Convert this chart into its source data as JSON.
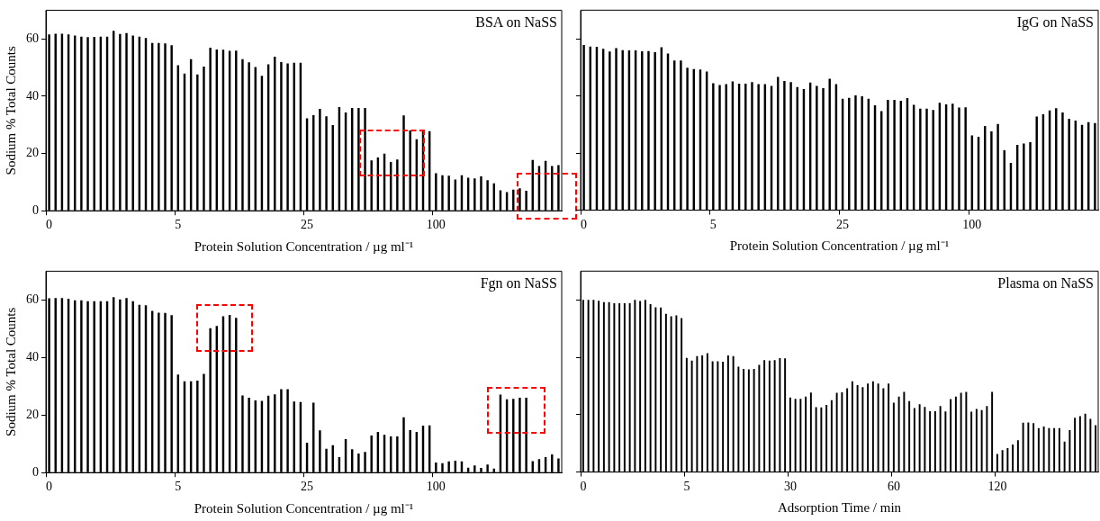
{
  "chart_data": [
    {
      "type": "bar",
      "title": "BSA on NaSS",
      "xlabel": "Protein Solution Concentration / µg ml⁻¹",
      "ylabel": "Sodium % Total Counts",
      "color": "#000000",
      "ylim": [
        0,
        70
      ],
      "yticks": [
        0,
        20,
        40,
        60
      ],
      "categories": [
        "0",
        null,
        null,
        null,
        null,
        null,
        null,
        null,
        null,
        null,
        null,
        null,
        null,
        null,
        null,
        null,
        null,
        null,
        null,
        null,
        "5",
        null,
        null,
        null,
        null,
        null,
        null,
        null,
        null,
        null,
        null,
        null,
        null,
        null,
        null,
        null,
        null,
        null,
        null,
        null,
        "25",
        null,
        null,
        null,
        null,
        null,
        null,
        null,
        null,
        null,
        null,
        null,
        null,
        null,
        null,
        null,
        null,
        null,
        null,
        null,
        "100",
        null,
        null,
        null,
        null,
        null,
        null,
        null,
        null,
        null,
        null,
        null,
        null,
        null,
        null,
        null,
        null,
        null,
        null,
        null
      ],
      "values": [
        61.6,
        61.8,
        61.8,
        61.6,
        61.2,
        60.8,
        60.6,
        60.7,
        60.8,
        60.8,
        62.8,
        61.7,
        62.0,
        61.2,
        60.8,
        60.3,
        58.6,
        58.6,
        58.4,
        57.8,
        50.8,
        47.9,
        52.9,
        47.6,
        50.3,
        56.9,
        56.3,
        56.2,
        55.8,
        55.9,
        52.9,
        51.8,
        50.2,
        47.1,
        51.1,
        53.8,
        51.9,
        51.4,
        51.7,
        51.7,
        32.3,
        33.4,
        35.6,
        33.0,
        29.9,
        36.2,
        34.3,
        35.9,
        35.9,
        35.9,
        17.6,
        18.6,
        19.9,
        17.0,
        17.9,
        33.3,
        28.0,
        25.0,
        27.8,
        27.8,
        13.1,
        12.4,
        12.2,
        10.9,
        12.4,
        11.5,
        11.3,
        12.0,
        10.7,
        9.6,
        7.1,
        6.5,
        7.4,
        7.8,
        7.0,
        17.7,
        15.6,
        17.4,
        15.6,
        15.9
      ]
    },
    {
      "type": "bar",
      "title": "IgG on NaSS",
      "xlabel": "Protein Solution Concentration / µg ml⁻¹",
      "color": "#000000",
      "ylim": [
        0,
        70
      ],
      "yticks": [
        0,
        20,
        40,
        60
      ],
      "tick_labels": "x",
      "categories": [
        "0",
        null,
        null,
        null,
        null,
        null,
        null,
        null,
        null,
        null,
        null,
        null,
        null,
        null,
        null,
        null,
        null,
        null,
        null,
        null,
        "5",
        null,
        null,
        null,
        null,
        null,
        null,
        null,
        null,
        null,
        null,
        null,
        null,
        null,
        null,
        null,
        null,
        null,
        null,
        null,
        "25",
        null,
        null,
        null,
        null,
        null,
        null,
        null,
        null,
        null,
        null,
        null,
        null,
        null,
        null,
        null,
        null,
        null,
        null,
        null,
        "100",
        null,
        null,
        null,
        null,
        null,
        null,
        null,
        null,
        null,
        null,
        null,
        null,
        null,
        null,
        null,
        null,
        null,
        null,
        null
      ],
      "values": [
        57.8,
        57.3,
        57.2,
        56.5,
        55.5,
        56.7,
        56.0,
        55.9,
        55.9,
        55.6,
        55.7,
        55.3,
        57.0,
        54.8,
        52.4,
        52.4,
        49.9,
        49.4,
        49.2,
        48.5,
        44.4,
        43.8,
        44.1,
        45.1,
        44.3,
        44.3,
        44.8,
        44.1,
        44.1,
        43.5,
        46.6,
        45.2,
        44.8,
        43.1,
        42.4,
        44.7,
        43.5,
        42.7,
        46.0,
        44.1,
        39.0,
        39.3,
        40.2,
        39.9,
        39.0,
        36.7,
        34.7,
        38.6,
        38.6,
        38.3,
        39.2,
        36.9,
        35.5,
        35.5,
        35.1,
        37.6,
        37.0,
        37.3,
        35.9,
        36.0,
        26.2,
        25.7,
        29.5,
        27.6,
        30.2,
        21.0,
        16.6,
        22.9,
        23.3,
        23.8,
        32.8,
        33.6,
        34.9,
        35.7,
        34.2,
        32.0,
        31.4,
        29.9,
        30.8,
        30.5
      ]
    },
    {
      "type": "bar",
      "title": "Fgn on NaSS",
      "xlabel": "Protein Solution Concentration / µg ml⁻¹",
      "ylabel": "Sodium % Total Counts",
      "color": "#000000",
      "ylim": [
        0,
        70
      ],
      "yticks": [
        0,
        20,
        40,
        60
      ],
      "categories": [
        "0",
        null,
        null,
        null,
        null,
        null,
        null,
        null,
        null,
        null,
        null,
        null,
        null,
        null,
        null,
        null,
        null,
        null,
        null,
        null,
        "5",
        null,
        null,
        null,
        null,
        null,
        null,
        null,
        null,
        null,
        null,
        null,
        null,
        null,
        null,
        null,
        null,
        null,
        null,
        null,
        "25",
        null,
        null,
        null,
        null,
        null,
        null,
        null,
        null,
        null,
        null,
        null,
        null,
        null,
        null,
        null,
        null,
        null,
        null,
        null,
        "100",
        null,
        null,
        null,
        null,
        null,
        null,
        null,
        null,
        null,
        null,
        null,
        null,
        null,
        null,
        null,
        null,
        null,
        null,
        null
      ],
      "values": [
        60.6,
        60.7,
        60.7,
        60.4,
        59.9,
        59.9,
        59.6,
        59.6,
        59.6,
        59.6,
        61.0,
        60.2,
        60.7,
        59.6,
        58.3,
        58.2,
        56.2,
        55.6,
        55.5,
        54.7,
        34.1,
        31.7,
        31.7,
        32.0,
        34.3,
        50.2,
        51.0,
        54.3,
        54.8,
        53.8,
        26.8,
        26.0,
        25.1,
        24.9,
        26.7,
        27.2,
        29.0,
        29.0,
        24.7,
        24.5,
        10.4,
        24.3,
        14.7,
        8.3,
        9.5,
        5.4,
        11.6,
        8.1,
        6.6,
        7.2,
        12.9,
        14.1,
        13.1,
        12.6,
        12.6,
        19.2,
        14.8,
        14.1,
        16.3,
        16.4,
        3.5,
        3.3,
        3.9,
        4.1,
        3.9,
        1.7,
        2.5,
        1.6,
        2.8,
        1.4,
        27.1,
        25.5,
        25.6,
        26.0,
        26.0,
        4.0,
        4.7,
        5.4,
        6.3,
        4.9
      ]
    },
    {
      "type": "bar",
      "title": "Plasma on NaSS",
      "xlabel": "Adsorption Time / min",
      "color": "#000000",
      "ylim": [
        0,
        70
      ],
      "yticks": [
        0,
        20,
        40,
        60
      ],
      "tick_labels": "x",
      "categories": [
        "0",
        null,
        null,
        null,
        null,
        null,
        null,
        null,
        null,
        null,
        null,
        null,
        null,
        null,
        null,
        null,
        null,
        null,
        null,
        null,
        "5",
        null,
        null,
        null,
        null,
        null,
        null,
        null,
        null,
        null,
        null,
        null,
        null,
        null,
        null,
        null,
        null,
        null,
        null,
        null,
        "30",
        null,
        null,
        null,
        null,
        null,
        null,
        null,
        null,
        null,
        null,
        null,
        null,
        null,
        null,
        null,
        null,
        null,
        null,
        null,
        "60",
        null,
        null,
        null,
        null,
        null,
        null,
        null,
        null,
        null,
        null,
        null,
        null,
        null,
        null,
        null,
        null,
        null,
        null,
        null,
        "120",
        null,
        null,
        null,
        null,
        null,
        null,
        null,
        null,
        null,
        null,
        null,
        null,
        null,
        null,
        null,
        null,
        null,
        null,
        null
      ],
      "values": [
        60.0,
        60.0,
        60.0,
        59.7,
        59.2,
        59.2,
        58.8,
        58.8,
        58.8,
        58.8,
        60.0,
        59.6,
        60.0,
        58.5,
        57.4,
        57.3,
        55.1,
        54.3,
        54.6,
        53.6,
        39.8,
        38.8,
        40.4,
        40.6,
        41.4,
        38.6,
        38.6,
        38.4,
        40.6,
        40.4,
        36.7,
        35.9,
        35.8,
        35.9,
        37.3,
        39.0,
        38.8,
        39.0,
        39.7,
        39.6,
        26.0,
        25.5,
        25.5,
        26.3,
        27.7,
        22.6,
        22.5,
        23.4,
        25.0,
        27.6,
        27.8,
        29.2,
        31.6,
        30.3,
        29.6,
        30.8,
        31.6,
        30.8,
        29.2,
        30.8,
        24.2,
        26.3,
        27.9,
        24.7,
        22.3,
        23.6,
        22.7,
        21.2,
        21.2,
        23.0,
        21.1,
        25.4,
        26.3,
        27.6,
        27.9,
        21.0,
        22.0,
        21.6,
        23.0,
        27.9,
        6.3,
        7.6,
        8.3,
        9.6,
        11.1,
        17.2,
        17.3,
        17.0,
        15.3,
        15.9,
        15.3,
        15.3,
        15.3,
        10.6,
        14.6,
        18.9,
        19.5,
        20.3,
        18.5,
        16.3
      ]
    }
  ]
}
